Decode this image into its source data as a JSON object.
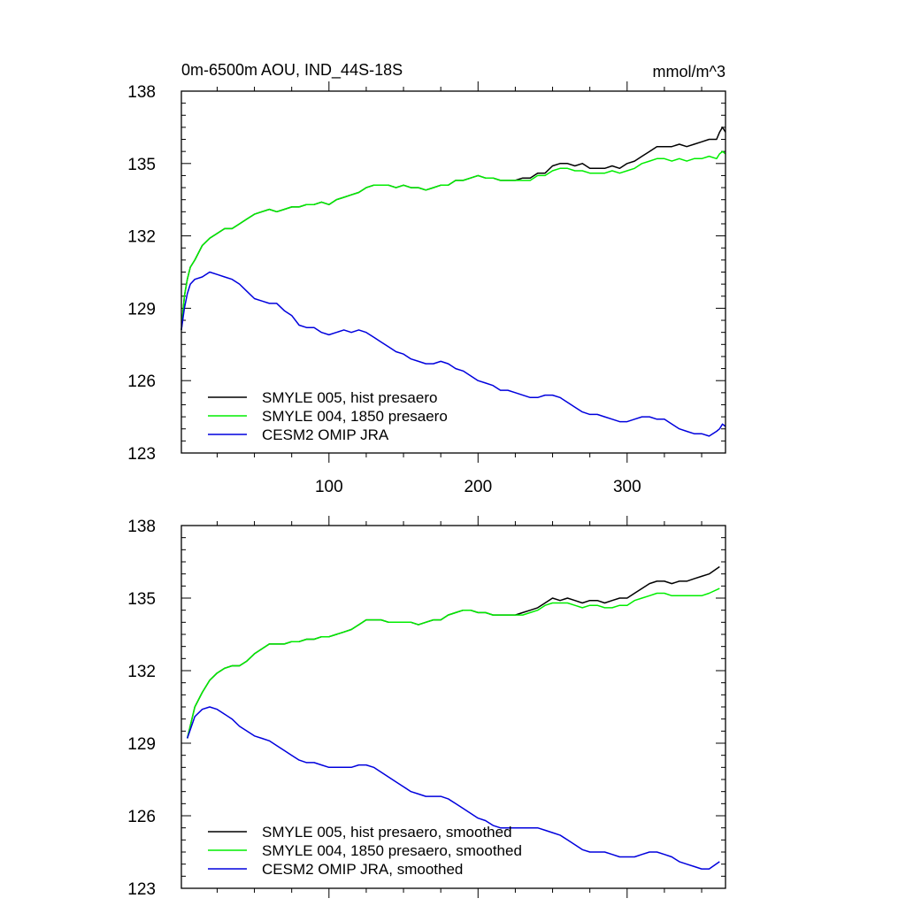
{
  "chart_data": [
    {
      "type": "line",
      "title": "0m-6500m AOU, IND_44S-18S",
      "units": "mmol/m^3",
      "xlabel": "",
      "ylabel": "",
      "xlim": [
        1,
        366
      ],
      "ylim": [
        123,
        138
      ],
      "xticks": [
        100,
        200,
        300
      ],
      "yticks": [
        123,
        126,
        129,
        132,
        135,
        138
      ],
      "legend_position": "bottom-left",
      "series": [
        {
          "name": "SMYLE 005, hist presaero",
          "color": "#000000",
          "x": [
            1,
            3,
            5,
            7,
            10,
            15,
            20,
            25,
            30,
            35,
            40,
            45,
            50,
            55,
            60,
            65,
            70,
            75,
            80,
            85,
            90,
            95,
            100,
            105,
            110,
            115,
            120,
            125,
            130,
            135,
            140,
            145,
            150,
            155,
            160,
            165,
            170,
            175,
            180,
            185,
            190,
            195,
            200,
            205,
            210,
            215,
            220,
            225,
            230,
            235,
            240,
            245,
            250,
            255,
            260,
            265,
            270,
            275,
            280,
            285,
            290,
            295,
            300,
            305,
            310,
            315,
            320,
            325,
            330,
            335,
            340,
            345,
            350,
            355,
            360,
            362,
            364,
            366
          ],
          "y": [
            128.1,
            129.5,
            130.2,
            130.7,
            131.0,
            131.6,
            131.9,
            132.1,
            132.3,
            132.3,
            132.5,
            132.7,
            132.9,
            133.0,
            133.1,
            133.0,
            133.1,
            133.2,
            133.2,
            133.3,
            133.3,
            133.4,
            133.3,
            133.5,
            133.6,
            133.7,
            133.8,
            134.0,
            134.1,
            134.1,
            134.1,
            134.0,
            134.1,
            134.0,
            134.0,
            133.9,
            134.0,
            134.1,
            134.1,
            134.3,
            134.3,
            134.4,
            134.5,
            134.4,
            134.4,
            134.3,
            134.3,
            134.3,
            134.4,
            134.4,
            134.6,
            134.6,
            134.9,
            135.0,
            135.0,
            134.9,
            135.0,
            134.8,
            134.8,
            134.8,
            134.9,
            134.8,
            135.0,
            135.1,
            135.3,
            135.5,
            135.7,
            135.7,
            135.7,
            135.8,
            135.7,
            135.8,
            135.9,
            136.0,
            136.0,
            136.3,
            136.5,
            136.3
          ]
        },
        {
          "name": "SMYLE 004, 1850 presaero",
          "color": "#00ee00",
          "x": [
            1,
            3,
            5,
            7,
            10,
            15,
            20,
            25,
            30,
            35,
            40,
            45,
            50,
            55,
            60,
            65,
            70,
            75,
            80,
            85,
            90,
            95,
            100,
            105,
            110,
            115,
            120,
            125,
            130,
            135,
            140,
            145,
            150,
            155,
            160,
            165,
            170,
            175,
            180,
            185,
            190,
            195,
            200,
            205,
            210,
            215,
            220,
            225,
            230,
            235,
            240,
            245,
            250,
            255,
            260,
            265,
            270,
            275,
            280,
            285,
            290,
            295,
            300,
            305,
            310,
            315,
            320,
            325,
            330,
            335,
            340,
            345,
            350,
            355,
            360,
            362,
            364,
            366
          ],
          "y": [
            128.1,
            129.5,
            130.2,
            130.7,
            131.0,
            131.6,
            131.9,
            132.1,
            132.3,
            132.3,
            132.5,
            132.7,
            132.9,
            133.0,
            133.1,
            133.0,
            133.1,
            133.2,
            133.2,
            133.3,
            133.3,
            133.4,
            133.3,
            133.5,
            133.6,
            133.7,
            133.8,
            134.0,
            134.1,
            134.1,
            134.1,
            134.0,
            134.1,
            134.0,
            134.0,
            133.9,
            134.0,
            134.1,
            134.1,
            134.3,
            134.3,
            134.4,
            134.5,
            134.4,
            134.4,
            134.3,
            134.3,
            134.3,
            134.3,
            134.3,
            134.5,
            134.5,
            134.7,
            134.8,
            134.8,
            134.7,
            134.7,
            134.6,
            134.6,
            134.6,
            134.7,
            134.6,
            134.7,
            134.8,
            135.0,
            135.1,
            135.2,
            135.2,
            135.1,
            135.2,
            135.1,
            135.2,
            135.2,
            135.3,
            135.2,
            135.4,
            135.5,
            135.4
          ]
        },
        {
          "name": "CESM2 OMIP JRA",
          "color": "#0000dd",
          "x": [
            1,
            3,
            5,
            7,
            10,
            15,
            20,
            25,
            30,
            35,
            40,
            45,
            50,
            55,
            60,
            65,
            70,
            75,
            80,
            85,
            90,
            95,
            100,
            105,
            110,
            115,
            120,
            125,
            130,
            135,
            140,
            145,
            150,
            155,
            160,
            165,
            170,
            175,
            180,
            185,
            190,
            195,
            200,
            205,
            210,
            215,
            220,
            225,
            230,
            235,
            240,
            245,
            250,
            255,
            260,
            265,
            270,
            275,
            280,
            285,
            290,
            295,
            300,
            305,
            310,
            315,
            320,
            325,
            330,
            335,
            340,
            345,
            350,
            355,
            360,
            362,
            364,
            366
          ],
          "y": [
            128.1,
            129.0,
            129.6,
            130.0,
            130.2,
            130.3,
            130.5,
            130.4,
            130.3,
            130.2,
            130.0,
            129.7,
            129.4,
            129.3,
            129.2,
            129.2,
            128.9,
            128.7,
            128.3,
            128.2,
            128.2,
            128.0,
            127.9,
            128.0,
            128.1,
            128.0,
            128.1,
            128.0,
            127.8,
            127.6,
            127.4,
            127.2,
            127.1,
            126.9,
            126.8,
            126.7,
            126.7,
            126.8,
            126.7,
            126.5,
            126.4,
            126.2,
            126.0,
            125.9,
            125.8,
            125.6,
            125.6,
            125.5,
            125.4,
            125.3,
            125.3,
            125.4,
            125.4,
            125.3,
            125.1,
            124.9,
            124.7,
            124.6,
            124.6,
            124.5,
            124.4,
            124.3,
            124.3,
            124.4,
            124.5,
            124.5,
            124.4,
            124.4,
            124.2,
            124.0,
            123.9,
            123.8,
            123.8,
            123.7,
            123.9,
            124.0,
            124.2,
            124.1
          ]
        }
      ]
    },
    {
      "type": "line",
      "title": "",
      "xlabel": "",
      "ylabel": "",
      "xlim": [
        1,
        366
      ],
      "ylim": [
        123,
        138
      ],
      "xticks": [
        100,
        200,
        300
      ],
      "yticks": [
        123,
        126,
        129,
        132,
        135,
        138
      ],
      "legend_position": "bottom-left",
      "series": [
        {
          "name": "SMYLE 005, hist presaero, smoothed",
          "color": "#000000",
          "x": [
            5,
            10,
            15,
            20,
            25,
            30,
            35,
            40,
            45,
            50,
            55,
            60,
            65,
            70,
            75,
            80,
            85,
            90,
            95,
            100,
            105,
            110,
            115,
            120,
            125,
            130,
            135,
            140,
            145,
            150,
            155,
            160,
            165,
            170,
            175,
            180,
            185,
            190,
            195,
            200,
            205,
            210,
            215,
            220,
            225,
            230,
            235,
            240,
            245,
            250,
            255,
            260,
            265,
            270,
            275,
            280,
            285,
            290,
            295,
            300,
            305,
            310,
            315,
            320,
            325,
            330,
            335,
            340,
            345,
            350,
            355,
            362
          ],
          "y": [
            129.2,
            130.5,
            131.1,
            131.6,
            131.9,
            132.1,
            132.2,
            132.2,
            132.4,
            132.7,
            132.9,
            133.1,
            133.1,
            133.1,
            133.2,
            133.2,
            133.3,
            133.3,
            133.4,
            133.4,
            133.5,
            133.6,
            133.7,
            133.9,
            134.1,
            134.1,
            134.1,
            134.0,
            134.0,
            134.0,
            134.0,
            133.9,
            134.0,
            134.1,
            134.1,
            134.3,
            134.4,
            134.5,
            134.5,
            134.4,
            134.4,
            134.3,
            134.3,
            134.3,
            134.3,
            134.4,
            134.5,
            134.6,
            134.8,
            135.0,
            134.9,
            135.0,
            134.9,
            134.8,
            134.9,
            134.9,
            134.8,
            134.9,
            135.0,
            135.0,
            135.2,
            135.4,
            135.6,
            135.7,
            135.7,
            135.6,
            135.7,
            135.7,
            135.8,
            135.9,
            136.0,
            136.3
          ]
        },
        {
          "name": "SMYLE 004, 1850 presaero, smoothed",
          "color": "#00ee00",
          "x": [
            5,
            10,
            15,
            20,
            25,
            30,
            35,
            40,
            45,
            50,
            55,
            60,
            65,
            70,
            75,
            80,
            85,
            90,
            95,
            100,
            105,
            110,
            115,
            120,
            125,
            130,
            135,
            140,
            145,
            150,
            155,
            160,
            165,
            170,
            175,
            180,
            185,
            190,
            195,
            200,
            205,
            210,
            215,
            220,
            225,
            230,
            235,
            240,
            245,
            250,
            255,
            260,
            265,
            270,
            275,
            280,
            285,
            290,
            295,
            300,
            305,
            310,
            315,
            320,
            325,
            330,
            335,
            340,
            345,
            350,
            355,
            362
          ],
          "y": [
            129.2,
            130.5,
            131.1,
            131.6,
            131.9,
            132.1,
            132.2,
            132.2,
            132.4,
            132.7,
            132.9,
            133.1,
            133.1,
            133.1,
            133.2,
            133.2,
            133.3,
            133.3,
            133.4,
            133.4,
            133.5,
            133.6,
            133.7,
            133.9,
            134.1,
            134.1,
            134.1,
            134.0,
            134.0,
            134.0,
            134.0,
            133.9,
            134.0,
            134.1,
            134.1,
            134.3,
            134.4,
            134.5,
            134.5,
            134.4,
            134.4,
            134.3,
            134.3,
            134.3,
            134.3,
            134.3,
            134.4,
            134.5,
            134.7,
            134.8,
            134.8,
            134.8,
            134.7,
            134.6,
            134.7,
            134.7,
            134.6,
            134.6,
            134.7,
            134.7,
            134.9,
            135.0,
            135.1,
            135.2,
            135.2,
            135.1,
            135.1,
            135.1,
            135.1,
            135.1,
            135.2,
            135.4
          ]
        },
        {
          "name": "CESM2 OMIP JRA, smoothed",
          "color": "#0000dd",
          "x": [
            5,
            10,
            15,
            20,
            25,
            30,
            35,
            40,
            45,
            50,
            55,
            60,
            65,
            70,
            75,
            80,
            85,
            90,
            95,
            100,
            105,
            110,
            115,
            120,
            125,
            130,
            135,
            140,
            145,
            150,
            155,
            160,
            165,
            170,
            175,
            180,
            185,
            190,
            195,
            200,
            205,
            210,
            215,
            220,
            225,
            230,
            235,
            240,
            245,
            250,
            255,
            260,
            265,
            270,
            275,
            280,
            285,
            290,
            295,
            300,
            305,
            310,
            315,
            320,
            325,
            330,
            335,
            340,
            345,
            350,
            355,
            362
          ],
          "y": [
            129.2,
            130.1,
            130.4,
            130.5,
            130.4,
            130.2,
            130.0,
            129.7,
            129.5,
            129.3,
            129.2,
            129.1,
            128.9,
            128.7,
            128.5,
            128.3,
            128.2,
            128.2,
            128.1,
            128.0,
            128.0,
            128.0,
            128.0,
            128.1,
            128.1,
            128.0,
            127.8,
            127.6,
            127.4,
            127.2,
            127.0,
            126.9,
            126.8,
            126.8,
            126.8,
            126.7,
            126.5,
            126.3,
            126.1,
            125.9,
            125.8,
            125.6,
            125.5,
            125.5,
            125.5,
            125.5,
            125.5,
            125.5,
            125.4,
            125.3,
            125.2,
            125.0,
            124.8,
            124.6,
            124.5,
            124.5,
            124.5,
            124.4,
            124.3,
            124.3,
            124.3,
            124.4,
            124.5,
            124.5,
            124.4,
            124.3,
            124.1,
            124.0,
            123.9,
            123.8,
            123.8,
            124.1
          ]
        }
      ]
    }
  ]
}
